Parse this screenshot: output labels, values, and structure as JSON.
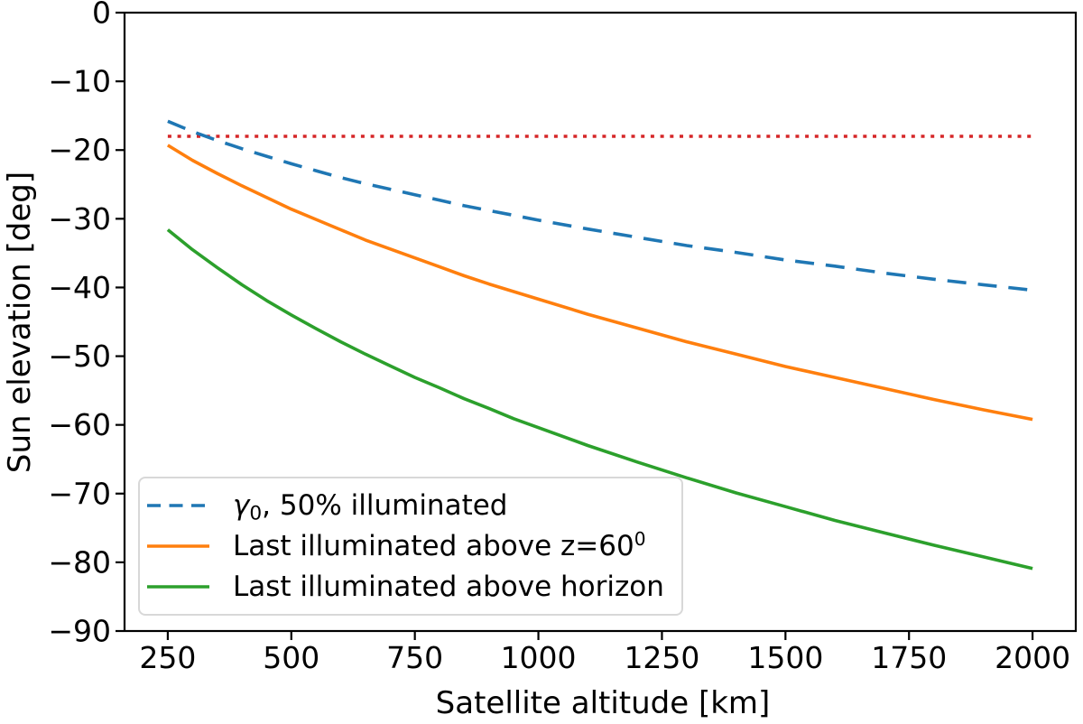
{
  "chart_data": {
    "type": "line",
    "title": "",
    "xlabel": "Satellite altitude [km]",
    "ylabel": "Sun elevation [deg]",
    "xlim": [
      162.5,
      2087.5
    ],
    "ylim": [
      -90,
      0
    ],
    "grid": false,
    "legend_position": "lower left",
    "xticks": {
      "values": [
        250,
        500,
        750,
        1000,
        1250,
        1500,
        1750,
        2000
      ],
      "labels": [
        "250",
        "500",
        "750",
        "1000",
        "1250",
        "1500",
        "1750",
        "2000"
      ]
    },
    "yticks": {
      "values": [
        0,
        -10,
        -20,
        -30,
        -40,
        -50,
        -60,
        -70,
        -80,
        -90
      ],
      "labels": [
        "0",
        "−10",
        "−20",
        "−30",
        "−40",
        "−50",
        "−60",
        "−70",
        "−80",
        "−90"
      ]
    },
    "x": [
      250,
      300,
      350,
      400,
      450,
      500,
      550,
      600,
      650,
      700,
      750,
      800,
      850,
      900,
      950,
      1000,
      1100,
      1200,
      1300,
      1400,
      1500,
      1600,
      1700,
      1800,
      1900,
      2000
    ],
    "series": [
      {
        "id": "gamma0",
        "name": "γ₀, 50% illuminated",
        "color": "#1f77b4",
        "style": "dashed",
        "values": [
          -15.8,
          -17.3,
          -18.6,
          -19.8,
          -20.9,
          -22.0,
          -23.0,
          -24.0,
          -24.9,
          -25.7,
          -26.5,
          -27.3,
          -28.1,
          -28.8,
          -29.5,
          -30.2,
          -31.5,
          -32.7,
          -33.9,
          -34.9,
          -36.0,
          -36.9,
          -37.9,
          -38.8,
          -39.6,
          -40.4
        ]
      },
      {
        "id": "last-illuminated-z60",
        "name": "Last illuminated above z=60⁰",
        "color": "#ff7f0e",
        "style": "solid",
        "values": [
          -19.3,
          -21.5,
          -23.4,
          -25.2,
          -26.9,
          -28.6,
          -30.1,
          -31.6,
          -33.1,
          -34.4,
          -35.7,
          -37.0,
          -38.3,
          -39.5,
          -40.6,
          -41.7,
          -43.9,
          -45.9,
          -47.9,
          -49.7,
          -51.5,
          -53.1,
          -54.7,
          -56.3,
          -57.8,
          -59.2
        ]
      },
      {
        "id": "last-illuminated-horizon",
        "name": "Last illuminated above horizon",
        "color": "#2ca02c",
        "style": "solid",
        "values": [
          -31.6,
          -34.5,
          -37.1,
          -39.6,
          -41.9,
          -44.0,
          -46.0,
          -47.9,
          -49.7,
          -51.4,
          -53.1,
          -54.6,
          -56.2,
          -57.6,
          -59.1,
          -60.4,
          -63.0,
          -65.4,
          -67.7,
          -69.9,
          -71.9,
          -73.9,
          -75.7,
          -77.5,
          -79.2,
          -80.9
        ]
      }
    ],
    "reference_line": {
      "id": "twilight-18deg",
      "value": -18,
      "color": "#d62728",
      "style": "dotted",
      "x_range": [
        250,
        2000
      ]
    }
  },
  "legend": {
    "entries": [
      {
        "label": "γ₀, 50% illuminated",
        "color": "#1f77b4",
        "parts": {
          "gamma": "γ",
          "sub": "0",
          "rest": ", 50% illuminated"
        }
      },
      {
        "label": "Last illuminated above z=60⁰",
        "color": "#ff7f0e",
        "parts": {
          "main": "Last illuminated above z=60",
          "sup": "0"
        }
      },
      {
        "label": "Last illuminated above horizon",
        "color": "#2ca02c",
        "parts": {
          "main": "Last illuminated above horizon"
        }
      }
    ]
  }
}
